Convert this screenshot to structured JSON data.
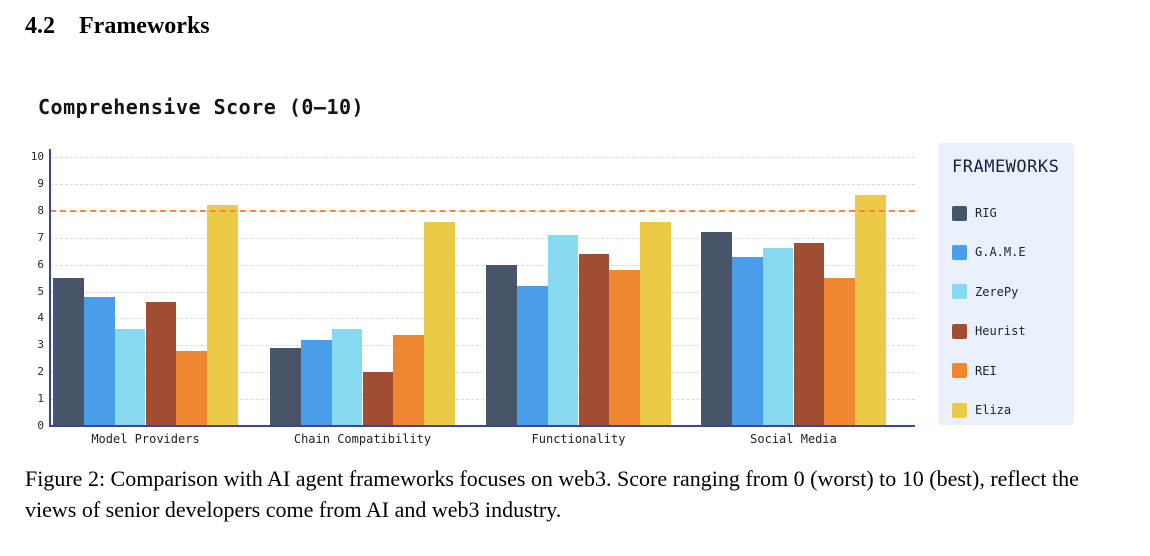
{
  "heading": {
    "number": "4.2",
    "title": "Frameworks"
  },
  "figure": {
    "caption": "Figure 2: Comparison with AI agent frameworks focuses on web3. Score ranging from 0 (worst) to 10 (best), reflect the views of senior developers come from AI and web3 industry."
  },
  "colors": {
    "axis": "#3a4693",
    "grid": "#d9d9d9",
    "reference_line": "#f5883b",
    "legend_background": "#eaf0fc"
  },
  "chart_data": {
    "type": "bar",
    "title": "Comprehensive Score (0–10)",
    "categories": [
      "Model Providers",
      "Chain Compatibility",
      "Functionality",
      "Social Media"
    ],
    "series": [
      {
        "name": "RIG",
        "color": "#475469",
        "values": [
          5.5,
          2.9,
          6.0,
          7.2
        ]
      },
      {
        "name": "G.A.M.E",
        "color": "#4a9ee9",
        "values": [
          4.8,
          3.2,
          5.2,
          6.3
        ]
      },
      {
        "name": "ZerePy",
        "color": "#86d9ef",
        "values": [
          3.6,
          3.6,
          7.1,
          6.6
        ]
      },
      {
        "name": "Heurist",
        "color": "#a04d31",
        "values": [
          4.6,
          2.0,
          6.4,
          6.8
        ]
      },
      {
        "name": "REI",
        "color": "#ef8630",
        "values": [
          2.8,
          3.4,
          5.8,
          5.5
        ]
      },
      {
        "name": "Eliza",
        "color": "#eaca47",
        "values": [
          8.2,
          7.6,
          7.6,
          8.6
        ]
      }
    ],
    "ylim": [
      0,
      10
    ],
    "yticks": [
      0,
      1,
      2,
      3,
      4,
      5,
      6,
      7,
      8,
      9,
      10
    ],
    "reference_line": {
      "y": 8,
      "style": "dashed",
      "color": "#f5883b"
    },
    "grid": "horizontal-dashed",
    "legend": {
      "title": "FRAMEWORKS",
      "position": "right",
      "entries": [
        "RIG",
        "G.A.M.E",
        "ZerePy",
        "Heurist",
        "REI",
        "Eliza"
      ]
    }
  }
}
